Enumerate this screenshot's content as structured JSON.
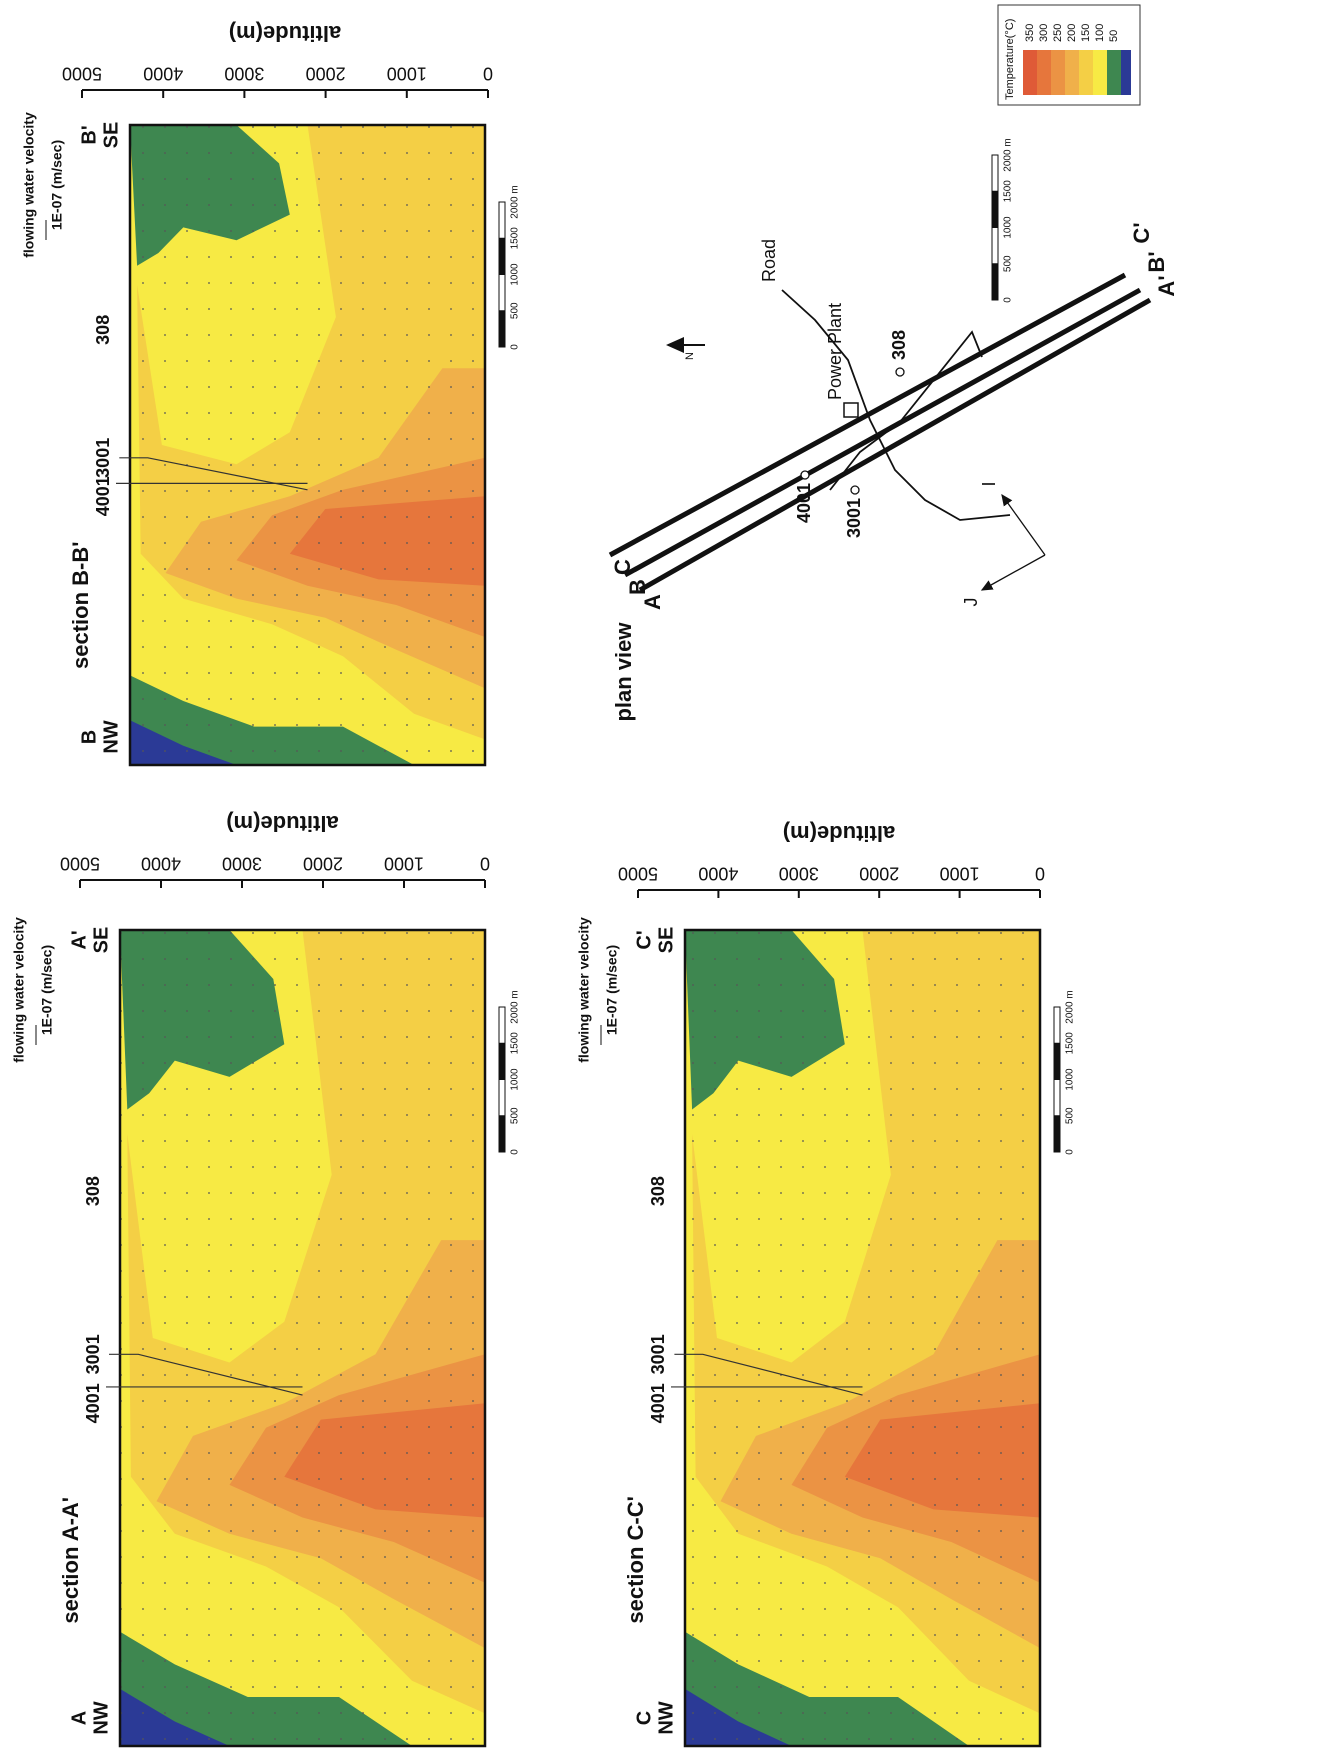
{
  "panels": [
    {
      "title": "section A-A'",
      "start": {
        "letter": "A",
        "dir": "NW"
      },
      "end": {
        "letter": "A'",
        "dir": "SE"
      },
      "wells": [
        "4001",
        "3001",
        "308"
      ],
      "axis_title": "altitude(m)",
      "ticks": [
        0,
        1000,
        2000,
        3000,
        4000,
        5000
      ],
      "velocity_title": "flowing water velocity",
      "velocity_unit": "1E-07 (m/sec)",
      "scale": [
        "0",
        "500",
        "1000",
        "1500",
        "2000 m"
      ]
    },
    {
      "title": "section B-B'",
      "start": {
        "letter": "B",
        "dir": "NW"
      },
      "end": {
        "letter": "B'",
        "dir": "SE"
      },
      "wells": [
        "4001",
        "3001",
        "308"
      ],
      "axis_title": "altitude(m)",
      "ticks": [
        0,
        1000,
        2000,
        3000,
        4000,
        5000
      ],
      "velocity_title": "flowing water velocity",
      "velocity_unit": "1E-07 (m/sec)",
      "scale": [
        "0",
        "500",
        "1000",
        "1500",
        "2000 m"
      ]
    },
    {
      "title": "section C-C'",
      "start": {
        "letter": "C",
        "dir": "NW"
      },
      "end": {
        "letter": "C'",
        "dir": "SE"
      },
      "wells": [
        "4001",
        "3001",
        "308"
      ],
      "axis_title": "altitude(m)",
      "ticks": [
        0,
        1000,
        2000,
        3000,
        4000,
        5000
      ],
      "velocity_title": "flowing water velocity",
      "velocity_unit": "1E-07 (m/sec)",
      "scale": [
        "0",
        "500",
        "1000",
        "1500",
        "2000 m"
      ]
    }
  ],
  "plan": {
    "title": "plan view",
    "lines": [
      {
        "start": "A",
        "end": "A'"
      },
      {
        "start": "B",
        "end": "B'"
      },
      {
        "start": "C",
        "end": "C'"
      }
    ],
    "road": "Road",
    "power_plant": "Power Plant",
    "wells": [
      "308",
      "3001",
      "4001"
    ],
    "north": "N",
    "axes": [
      "I",
      "J"
    ],
    "scale": [
      "0",
      "500",
      "1000",
      "1500",
      "2000 m"
    ]
  },
  "legend": {
    "title": "Temperature(°C)",
    "levels": [
      "350",
      "300",
      "250",
      "200",
      "150",
      "100",
      "50"
    ],
    "colors": [
      "#df5a37",
      "#e6763c",
      "#eb9344",
      "#f0b04a",
      "#f4cf45",
      "#f7ea44",
      "#3e8750"
    ]
  }
}
